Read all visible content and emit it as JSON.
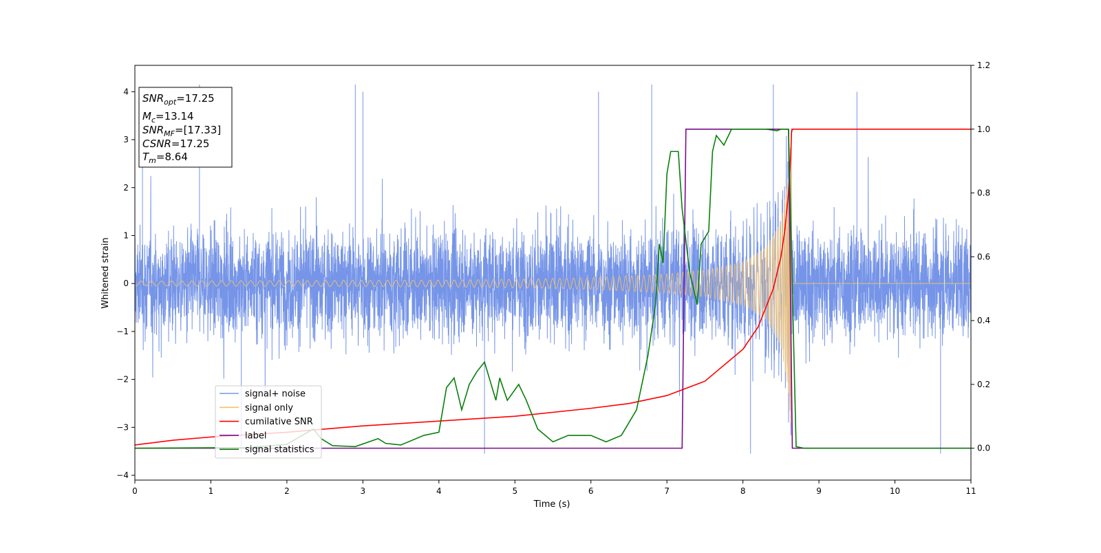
{
  "chart_data": {
    "type": "line",
    "xlabel": "Time (s)",
    "ylabel": "Whitened strain",
    "xlim": [
      0,
      11
    ],
    "ylim": [
      -4.1,
      4.55
    ],
    "y2lim": [
      -0.1,
      1.2
    ],
    "x_ticks": [
      "0",
      "1",
      "2",
      "3",
      "4",
      "5",
      "6",
      "7",
      "8",
      "9",
      "10",
      "11"
    ],
    "y_ticks": [
      "−4",
      "−3",
      "−2",
      "−1",
      "0",
      "1",
      "2",
      "3",
      "4"
    ],
    "y2_ticks": [
      "0.0",
      "0.2",
      "0.4",
      "0.6",
      "0.8",
      "1.0",
      "1.2"
    ],
    "grid": false,
    "legend_position": "lower-left",
    "info_box": [
      "SNR_opt=17.25",
      "M_c=13.14",
      "SNR_MF=[17.33]",
      "CSNR=17.25",
      "T_m=8.64"
    ],
    "series": [
      {
        "name": "signal+ noise",
        "color": "#7695e8",
        "axis": "left",
        "style": "white noise band, std about 0.85, sparse peaks to +4.2 and -3.6, plus the chirp",
        "peak_times": [
          0.1,
          0.85,
          1.4,
          2.9,
          3.0,
          4.6,
          6.1,
          6.8,
          8.1,
          8.4,
          9.5,
          10.6
        ]
      },
      {
        "name": "signal only",
        "color": "#f5c26b",
        "axis": "left",
        "style": "chirp with growing amplitude, merger at 8.64 s, then zero",
        "amplitude": {
          "x": [
            0,
            2,
            4,
            5,
            6,
            7,
            7.5,
            8,
            8.3,
            8.5,
            8.6,
            8.64
          ],
          "y": [
            0.05,
            0.06,
            0.07,
            0.09,
            0.12,
            0.2,
            0.28,
            0.45,
            0.75,
            1.3,
            2.3,
            3.2
          ]
        }
      },
      {
        "name": "cumilative SNR",
        "color": "#ff0000",
        "axis": "right",
        "x": [
          0,
          0.5,
          1,
          2,
          3,
          4,
          5,
          6,
          6.5,
          7,
          7.5,
          8,
          8.2,
          8.4,
          8.5,
          8.55,
          8.6,
          8.63,
          8.64,
          8.65,
          9,
          10,
          11
        ],
        "y": [
          0.01,
          0.025,
          0.035,
          0.05,
          0.07,
          0.085,
          0.1,
          0.125,
          0.14,
          0.165,
          0.21,
          0.31,
          0.38,
          0.5,
          0.6,
          0.68,
          0.8,
          0.92,
          0.99,
          1.0,
          1.0,
          1.0,
          1.0
        ]
      },
      {
        "name": "label",
        "color": "#7b0a8c",
        "axis": "right",
        "x": [
          0,
          7.2,
          7.25,
          8.6,
          8.65,
          11
        ],
        "y": [
          0,
          0,
          1,
          1,
          0,
          0
        ]
      },
      {
        "name": "signal statistics",
        "color": "#087f08",
        "axis": "right",
        "x": [
          0,
          1.5,
          2.0,
          2.2,
          2.35,
          2.45,
          2.6,
          2.9,
          3.2,
          3.3,
          3.5,
          3.8,
          4.0,
          4.1,
          4.2,
          4.3,
          4.4,
          4.5,
          4.6,
          4.75,
          4.8,
          4.9,
          5.05,
          5.15,
          5.3,
          5.5,
          5.7,
          6.0,
          6.2,
          6.4,
          6.6,
          6.75,
          6.85,
          6.9,
          6.95,
          7.0,
          7.05,
          7.15,
          7.2,
          7.3,
          7.4,
          7.45,
          7.55,
          7.6,
          7.65,
          7.75,
          7.85,
          8.0,
          8.3,
          8.45,
          8.5,
          8.6,
          8.7,
          8.8,
          11
        ],
        "y": [
          0,
          0.002,
          0.012,
          0.04,
          0.06,
          0.03,
          0.008,
          0.005,
          0.03,
          0.015,
          0.01,
          0.04,
          0.05,
          0.19,
          0.22,
          0.12,
          0.2,
          0.24,
          0.27,
          0.15,
          0.22,
          0.15,
          0.2,
          0.15,
          0.06,
          0.02,
          0.04,
          0.04,
          0.02,
          0.04,
          0.12,
          0.29,
          0.45,
          0.64,
          0.58,
          0.86,
          0.93,
          0.93,
          0.75,
          0.55,
          0.45,
          0.64,
          0.68,
          0.93,
          0.98,
          0.95,
          1.0,
          1.0,
          1.0,
          0.995,
          1.0,
          1.0,
          0.005,
          0.0,
          0.0
        ]
      }
    ]
  }
}
